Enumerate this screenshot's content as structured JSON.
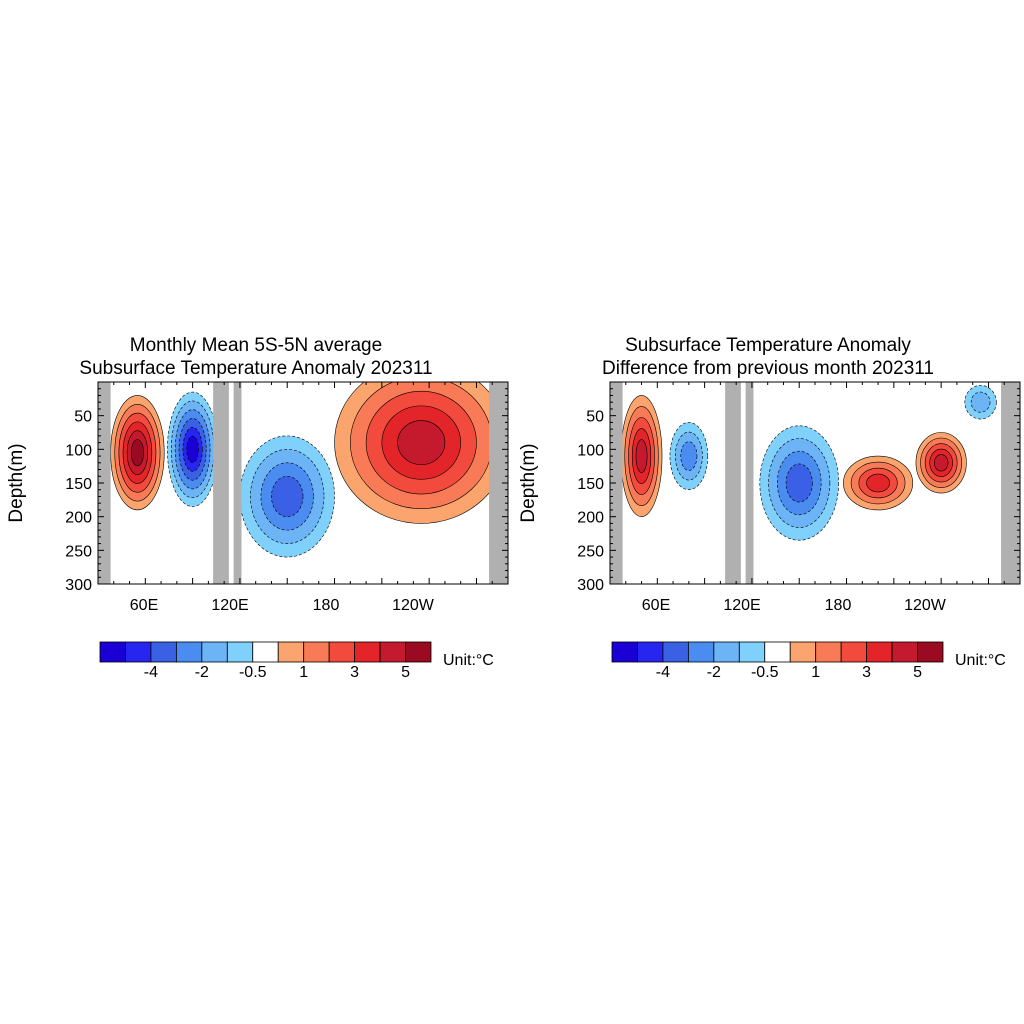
{
  "colors": {
    "land": "#b0b0b0",
    "levels": [
      "#1b00d6",
      "#2626f0",
      "#3a60e6",
      "#4a8cf0",
      "#6cb4f6",
      "#7fd0fa",
      "#ffffff",
      "#fba46e",
      "#f97a56",
      "#f24a3c",
      "#e3252a",
      "#c51a2e",
      "#9a0b22"
    ]
  },
  "colorbar_labels": [
    "-4",
    "-2",
    "-0.5",
    "1",
    "3",
    "5"
  ],
  "unit_prefix": "Unit:",
  "unit_symbol": "°C",
  "chart_data": [
    {
      "type": "heatmap",
      "title_line1": "Monthly Mean 5S-5N average",
      "title_line2": "Subsurface Temperature Anomaly 202311",
      "ylabel": "Depth(m)",
      "ylim": [
        300,
        0
      ],
      "yticks": [
        50,
        100,
        150,
        200,
        250,
        300
      ],
      "xticks": [
        "60E",
        "120E",
        "180",
        "120W"
      ],
      "xlim": [
        30,
        290
      ],
      "colorbar": {
        "levels": [
          -5,
          -4,
          -3,
          -2,
          -1,
          -0.5,
          0.5,
          1,
          2,
          3,
          4,
          5
        ],
        "labels": [
          "-4",
          "-2",
          "-0.5",
          "1",
          "3",
          "5"
        ]
      },
      "land": [
        [
          30,
          38
        ],
        [
          103,
          113
        ],
        [
          116,
          121
        ],
        [
          278,
          290
        ]
      ],
      "features": [
        {
          "kind": "warm",
          "lon": 55,
          "depth": 105,
          "radius_lon": 17,
          "radius_depth": 85,
          "peak": 5
        },
        {
          "kind": "cool",
          "lon": 90,
          "depth": 100,
          "radius_lon": 16,
          "radius_depth": 85,
          "peak": -5
        },
        {
          "kind": "cool",
          "lon": 150,
          "depth": 170,
          "radius_lon": 30,
          "radius_depth": 90,
          "peak": -3
        },
        {
          "kind": "warm",
          "lon": 235,
          "depth": 90,
          "radius_lon": 55,
          "radius_depth": 120,
          "peak": 4
        }
      ]
    },
    {
      "type": "heatmap",
      "title_line1": "Subsurface Temperature Anomaly",
      "title_line2": "Difference from previous month 202311",
      "ylabel": "Depth(m)",
      "ylim": [
        300,
        0
      ],
      "yticks": [
        50,
        100,
        150,
        200,
        250,
        300
      ],
      "xticks": [
        "60E",
        "120E",
        "180",
        "120W"
      ],
      "xlim": [
        30,
        290
      ],
      "colorbar": {
        "levels": [
          -5,
          -4,
          -3,
          -2,
          -1,
          -0.5,
          0.5,
          1,
          2,
          3,
          4,
          5
        ],
        "labels": [
          "-4",
          "-2",
          "-0.5",
          "1",
          "3",
          "5"
        ]
      },
      "land": [
        [
          30,
          38
        ],
        [
          103,
          113
        ],
        [
          116,
          121
        ],
        [
          278,
          290
        ]
      ],
      "features": [
        {
          "kind": "warm",
          "lon": 50,
          "depth": 110,
          "radius_lon": 13,
          "radius_depth": 90,
          "peak": 4
        },
        {
          "kind": "cool",
          "lon": 80,
          "depth": 110,
          "radius_lon": 12,
          "radius_depth": 50,
          "peak": -2
        },
        {
          "kind": "cool",
          "lon": 150,
          "depth": 150,
          "radius_lon": 25,
          "radius_depth": 85,
          "peak": -3
        },
        {
          "kind": "warm",
          "lon": 200,
          "depth": 150,
          "radius_lon": 22,
          "radius_depth": 40,
          "peak": 3
        },
        {
          "kind": "warm",
          "lon": 240,
          "depth": 120,
          "radius_lon": 16,
          "radius_depth": 45,
          "peak": 4
        },
        {
          "kind": "cool",
          "lon": 265,
          "depth": 30,
          "radius_lon": 10,
          "radius_depth": 25,
          "peak": -1
        }
      ]
    }
  ]
}
